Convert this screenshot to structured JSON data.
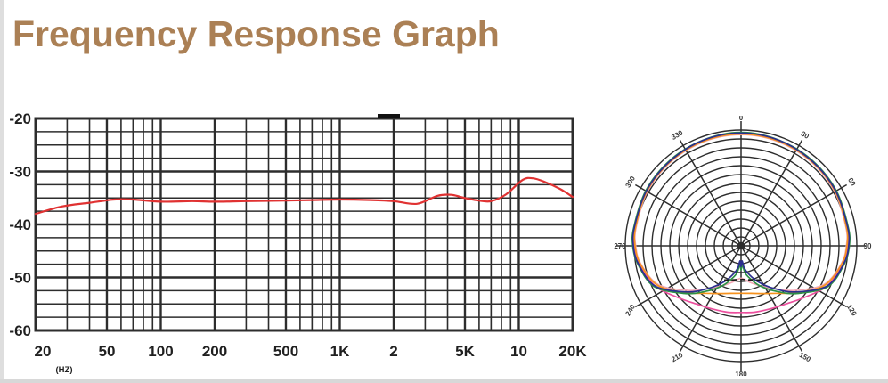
{
  "page": {
    "title": "Frequency Response Graph",
    "title_color": "#ab8055",
    "background": "#ffffff",
    "grid_color": "#2d2d2d",
    "axis_text_color": "#1f1f1f"
  },
  "chart_data": [
    {
      "type": "line",
      "name": "frequency-response",
      "title": "Frequency Response Graph",
      "xlabel": "(HZ)",
      "x_scale": "log",
      "xlim": [
        20,
        20000
      ],
      "ylim": [
        -60,
        -20
      ],
      "y_minor_step": 2.5,
      "grid": true,
      "x_gridlines": [
        20,
        30,
        40,
        50,
        60,
        70,
        80,
        90,
        100,
        200,
        300,
        400,
        500,
        600,
        700,
        800,
        900,
        1000,
        2000,
        3000,
        4000,
        5000,
        6000,
        7000,
        8000,
        9000,
        10000,
        20000
      ],
      "x_ticks": [
        {
          "f": 20,
          "label": "20"
        },
        {
          "f": 50,
          "label": "50"
        },
        {
          "f": 100,
          "label": "100"
        },
        {
          "f": 200,
          "label": "200"
        },
        {
          "f": 500,
          "label": "500"
        },
        {
          "f": 1000,
          "label": "1K"
        },
        {
          "f": 2000,
          "label": "2"
        },
        {
          "f": 5000,
          "label": "5K"
        },
        {
          "f": 10000,
          "label": "10"
        },
        {
          "f": 20000,
          "label": "20K"
        }
      ],
      "y_ticks": [
        {
          "v": -20,
          "label": "-20"
        },
        {
          "v": -30,
          "label": "-30"
        },
        {
          "v": -40,
          "label": "-40"
        },
        {
          "v": -50,
          "label": "-50"
        },
        {
          "v": -60,
          "label": "-60"
        }
      ],
      "series": [
        {
          "name": "response-curve",
          "color": "#e03232",
          "x": [
            20,
            28,
            40,
            55,
            70,
            100,
            150,
            200,
            300,
            500,
            700,
            1000,
            1500,
            2000,
            2700,
            3500,
            4200,
            5000,
            6000,
            7000,
            8500,
            10500,
            12000,
            14000,
            17000,
            20000
          ],
          "y": [
            -38.0,
            -36.6,
            -35.9,
            -35.3,
            -35.3,
            -35.7,
            -35.6,
            -35.7,
            -35.6,
            -35.5,
            -35.4,
            -35.3,
            -35.4,
            -35.6,
            -36.1,
            -34.6,
            -34.4,
            -35.0,
            -35.5,
            -35.6,
            -34.3,
            -31.6,
            -31.3,
            -32.0,
            -33.3,
            -34.8
          ]
        }
      ]
    },
    {
      "type": "polar",
      "name": "polar-pattern",
      "rings": 13,
      "spoke_step_deg": 30,
      "angle_labels": [
        {
          "text": "0",
          "angle": 0,
          "rot": 0
        },
        {
          "text": "30",
          "angle": 30,
          "rot": 30
        },
        {
          "text": "60",
          "angle": 60,
          "rot": 60
        },
        {
          "text": "90",
          "angle": 90,
          "rot": 0,
          "off": 12
        },
        {
          "text": "120",
          "angle": 120,
          "rot": 60
        },
        {
          "text": "150",
          "angle": 150,
          "rot": 30
        },
        {
          "text": "180",
          "angle": 180,
          "rot": 0
        },
        {
          "text": "210",
          "angle": 210,
          "rot": -30
        },
        {
          "text": "240",
          "angle": 240,
          "rot": -60
        },
        {
          "text": "270",
          "angle": 270,
          "rot": 0,
          "off": 6
        },
        {
          "text": "300",
          "angle": 300,
          "rot": -60
        },
        {
          "text": "330",
          "angle": 330,
          "rot": -30
        }
      ],
      "series": [
        {
          "name": "pattern-salmon",
          "color": "#f2a9b6",
          "closed": true,
          "points": [
            [
              0,
              0.96
            ],
            [
              20,
              0.955
            ],
            [
              40,
              0.945
            ],
            [
              60,
              0.935
            ],
            [
              80,
              0.92
            ],
            [
              90,
              0.91
            ],
            [
              100,
              0.88
            ],
            [
              115,
              0.79
            ],
            [
              130,
              0.6
            ],
            [
              142,
              0.47
            ],
            [
              155,
              0.38
            ],
            [
              165,
              0.33
            ],
            [
              173,
              0.295
            ],
            [
              180,
              0.28
            ]
          ]
        },
        {
          "name": "pattern-magenta",
          "color": "#ec4f9e",
          "closed": true,
          "points": [
            [
              0,
              0.97
            ],
            [
              20,
              0.965
            ],
            [
              40,
              0.952
            ],
            [
              60,
              0.94
            ],
            [
              80,
              0.93
            ],
            [
              90,
              0.925
            ],
            [
              100,
              0.895
            ],
            [
              115,
              0.82
            ],
            [
              130,
              0.7
            ],
            [
              142,
              0.635
            ],
            [
              155,
              0.6
            ],
            [
              168,
              0.585
            ],
            [
              180,
              0.575
            ]
          ]
        },
        {
          "name": "pattern-orange",
          "color": "#f6921e",
          "closed": true,
          "points": [
            [
              0,
              0.965
            ],
            [
              20,
              0.96
            ],
            [
              40,
              0.95
            ],
            [
              60,
              0.94
            ],
            [
              80,
              0.925
            ],
            [
              90,
              0.915
            ],
            [
              100,
              0.885
            ],
            [
              115,
              0.8
            ],
            [
              130,
              0.63
            ],
            [
              142,
              0.52
            ],
            [
              155,
              0.455
            ],
            [
              168,
              0.42
            ],
            [
              180,
              0.41
            ]
          ]
        },
        {
          "name": "pattern-green",
          "color": "#2e9146",
          "closed": true,
          "points": [
            [
              0,
              0.98
            ],
            [
              20,
              0.97
            ],
            [
              40,
              0.96
            ],
            [
              60,
              0.95
            ],
            [
              80,
              0.94
            ],
            [
              90,
              0.935
            ],
            [
              100,
              0.905
            ],
            [
              115,
              0.83
            ],
            [
              130,
              0.64
            ],
            [
              142,
              0.5
            ],
            [
              155,
              0.38
            ],
            [
              165,
              0.29
            ],
            [
              172,
              0.23
            ],
            [
              176,
              0.16
            ],
            [
              180,
              0.21
            ]
          ]
        },
        {
          "name": "pattern-navy",
          "color": "#2b2f8e",
          "closed": true,
          "points": [
            [
              0,
              0.975
            ],
            [
              20,
              0.968
            ],
            [
              40,
              0.955
            ],
            [
              60,
              0.945
            ],
            [
              80,
              0.935
            ],
            [
              90,
              0.93
            ],
            [
              100,
              0.9
            ],
            [
              115,
              0.82
            ],
            [
              130,
              0.62
            ],
            [
              142,
              0.47
            ],
            [
              155,
              0.34
            ],
            [
              165,
              0.25
            ],
            [
              172,
              0.19
            ],
            [
              176,
              0.13
            ],
            [
              180,
              0.18
            ]
          ]
        },
        {
          "name": "pattern-rear-dashed",
          "color": "#1a1a1a",
          "closed": false,
          "dash": "5,4",
          "points": [
            [
              150,
              0.34
            ],
            [
              162,
              0.31
            ],
            [
              172,
              0.295
            ],
            [
              180,
              0.29
            ],
            [
              188,
              0.295
            ],
            [
              198,
              0.31
            ],
            [
              210,
              0.34
            ]
          ]
        }
      ]
    }
  ]
}
